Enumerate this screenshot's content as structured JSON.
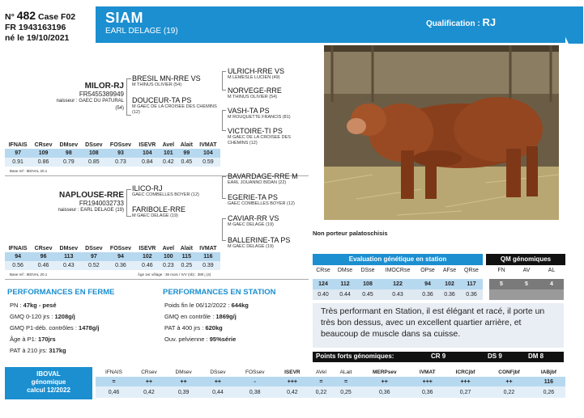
{
  "ident": {
    "no_label": "N°",
    "no": "482",
    "case_label": "Case",
    "case": "F02",
    "fr": "FR 1943163196",
    "born": "né le 19/10/2021"
  },
  "animal": {
    "name": "SIAM",
    "breeder": "EARL DELAGE (19)",
    "qualification_label": "Qualification :",
    "qualification": "RJ"
  },
  "photo_caption": "Non porteur palatoschisis",
  "sire": {
    "name": "MILOR-RJ",
    "id": "FR5455389949",
    "breeder": "naisseur : GAEC DU PATURAL (54)",
    "father": {
      "name": "BRESIL MN-RRE VS",
      "breeder": "M THINUS OLIVIER (54)"
    },
    "mother": {
      "name": "DOUCEUR-TA PS",
      "breeder": "M GAEC DE LA CROISEE DES CHEMINS (12)"
    },
    "gf1": {
      "name": "ULRICH-RRE VS",
      "breeder": "M LEMESLE LUCIEN (49)"
    },
    "gm1": {
      "name": "NORVEGE-RRE",
      "breeder": "M THINUS OLIVIER (54)"
    },
    "gf2": {
      "name": "VASH-TA PS",
      "breeder": "M ROUQUETTE FRANCIS (81)"
    },
    "gm2": {
      "name": "VICTOIRE-TI PS",
      "breeder": "M GAEC DE LA CROISEE DES CHEMINS (12)"
    },
    "index_headers": [
      "IFNAIS",
      "CRsev",
      "DMsev",
      "DSsev",
      "FOSsev",
      "ISEVR",
      "Avel",
      "Alait",
      "IVMAT"
    ],
    "index_values": [
      "97",
      "109",
      "98",
      "108",
      "93",
      "104",
      "101",
      "99",
      "104"
    ],
    "index_cd": [
      "0.91",
      "0.86",
      "0.79",
      "0.85",
      "0.73",
      "0.84",
      "0.42",
      "0.45",
      "0.59"
    ],
    "base": "Base ref : IBOVAL 20.1"
  },
  "dam": {
    "name": "NAPLOUSE-RRE",
    "id": "FR1940032733",
    "breeder": "naisseur : EARL DELAGE (19)",
    "father": {
      "name": "ILICO-RJ",
      "breeder": "GAEC COMBELLES BOYER (12)"
    },
    "mother": {
      "name": "FARIBOLE-RRE",
      "breeder": "M GAEC DELAGE (19)"
    },
    "gf1": {
      "name": "BAVARDAGE-RRE M",
      "breeder": "EARL JOUANNO BIDAN (22)"
    },
    "gm1": {
      "name": "EGERIE-TA PS",
      "breeder": "GAEC COMBELLES BOYER (12)"
    },
    "gf2": {
      "name": "CAVIAR-RR VS",
      "breeder": "M GAEC DELAGE (19)"
    },
    "gm2": {
      "name": "BALLERINE-TA PS",
      "breeder": "M GAEC DELAGE (19)"
    },
    "index_headers": [
      "IFNAIS",
      "CRsev",
      "DMsev",
      "DSsev",
      "FOSsev",
      "ISEVR",
      "Avel",
      "Alait",
      "IVMAT"
    ],
    "index_values": [
      "94",
      "96",
      "113",
      "97",
      "94",
      "102",
      "100",
      "115",
      "116"
    ],
    "index_cd": [
      "0.56",
      "0.46",
      "0.43",
      "0.52",
      "0.36",
      "0.46",
      "0.23",
      "0.25",
      "0.39"
    ],
    "base": "Base ref : IBOVAL 20.1",
    "age_note": "Âge 1er vêlage : 36 mois / IVV (nb) : 380 j (4)"
  },
  "perf_ferme": {
    "title": "PERFORMANCES EN FERME",
    "lines": [
      {
        "label": "PN : ",
        "value": "47kg - pesé"
      },
      {
        "label": "GMQ 0-120 jrs : ",
        "value": "1208g/j"
      },
      {
        "label": "GMQ P1-déb. contrôles : ",
        "value": "1478g/j"
      },
      {
        "label": "Âge à P1: ",
        "value": "170jrs"
      },
      {
        "label": "PAT à 210 jrs: ",
        "value": "317kg"
      }
    ]
  },
  "perf_station": {
    "title": "PERFORMANCES EN STATION",
    "lines": [
      {
        "label": "Poids fin le 06/12/2022 : ",
        "value": "644kg"
      },
      {
        "label": "GMQ en contrôle : ",
        "value": "1869g/j"
      },
      {
        "label": "PAT à 400 jrs : ",
        "value": "620kg"
      },
      {
        "label": "Ouv. pelvienne : ",
        "value": "95%série"
      }
    ]
  },
  "eval_station": {
    "title": "Evaluation génétique en station",
    "headers": [
      "CRse",
      "DMse",
      "DSse",
      "IMOCRse",
      "OPse",
      "AFse",
      "QRse"
    ],
    "values": [
      "124",
      "112",
      "108",
      "122",
      "94",
      "102",
      "117"
    ],
    "cd": [
      "0.40",
      "0.44",
      "0.45",
      "0.43",
      "0.36",
      "0.36",
      "0.36"
    ]
  },
  "qm": {
    "title": "QM génomiques",
    "headers": [
      "FN",
      "AV",
      "AL"
    ],
    "values": [
      "5",
      "5",
      "4"
    ]
  },
  "comment": "Très performant en Station, il est élégant et racé, il porte un très bon dessus, avec un excellent quartier arrière, et beaucoup de muscle dans sa cuisse.",
  "points_forts": {
    "label": "Points forts génomiques:",
    "items": [
      "CR 9",
      "DS 9",
      "DM 8"
    ]
  },
  "iboval": {
    "box_lines": [
      "IBOVAL",
      "génomique",
      "calcul 12/2022"
    ],
    "headers": [
      "IFNAIS",
      "CRsev",
      "DMsev",
      "DSsev",
      "FOSsev",
      "ISEVR",
      "AVel",
      "ALait",
      "MERPsev",
      "IVMAT",
      "ICRCjbf",
      "CONFjbf",
      "IABjbf"
    ],
    "symbols": [
      "=",
      "++",
      "++",
      "++",
      "-",
      "+++",
      "=",
      "=",
      "++",
      "+++",
      "+++",
      "++",
      "116"
    ],
    "cd": [
      "0,46",
      "0,42",
      "0,39",
      "0,44",
      "0,38",
      "0,42",
      "0,22",
      "0,25",
      "0,36",
      "0,36",
      "0,27",
      "0,22",
      "0,26"
    ]
  },
  "colors": {
    "accent": "#1b8fd0",
    "index_value_bg": "#b7d9f0",
    "dark": "#111111"
  }
}
